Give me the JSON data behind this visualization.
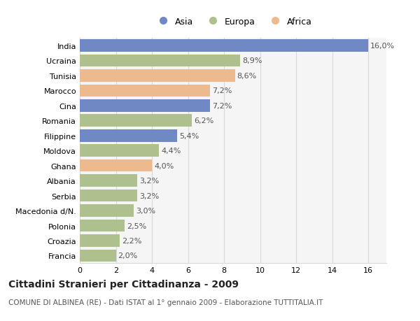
{
  "categories": [
    "India",
    "Ucraina",
    "Tunisia",
    "Marocco",
    "Cina",
    "Romania",
    "Filippine",
    "Moldova",
    "Ghana",
    "Albania",
    "Serbia",
    "Macedonia d/N.",
    "Polonia",
    "Croazia",
    "Francia"
  ],
  "values": [
    16.0,
    8.9,
    8.6,
    7.2,
    7.2,
    6.2,
    5.4,
    4.4,
    4.0,
    3.2,
    3.2,
    3.0,
    2.5,
    2.2,
    2.0
  ],
  "continents": [
    "Asia",
    "Europa",
    "Africa",
    "Africa",
    "Asia",
    "Europa",
    "Asia",
    "Europa",
    "Africa",
    "Europa",
    "Europa",
    "Europa",
    "Europa",
    "Europa",
    "Europa"
  ],
  "colors": {
    "Asia": "#7088c4",
    "Europa": "#adc08d",
    "Africa": "#edba90"
  },
  "legend_order": [
    "Asia",
    "Europa",
    "Africa"
  ],
  "xlim": [
    0,
    17
  ],
  "xticks": [
    0,
    2,
    4,
    6,
    8,
    10,
    12,
    14,
    16
  ],
  "title": "Cittadini Stranieri per Cittadinanza - 2009",
  "subtitle": "COMUNE DI ALBINEA (RE) - Dati ISTAT al 1° gennaio 2009 - Elaborazione TUTTITALIA.IT",
  "background_color": "#ffffff",
  "plot_bg_color": "#f5f5f5",
  "grid_color": "#d8d8d8",
  "bar_height": 0.82,
  "label_fontsize": 8,
  "tick_fontsize": 8,
  "title_fontsize": 10,
  "subtitle_fontsize": 7.5,
  "legend_fontsize": 9
}
